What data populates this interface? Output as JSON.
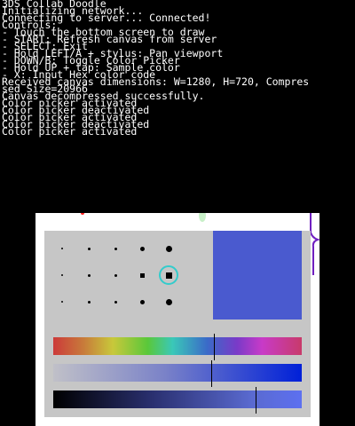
{
  "console": {
    "lines": [
      "3DS Collab Doodle",
      "Initializing network...",
      "Connecting to server... Connected!",
      "Controls:",
      "- Touch the bottom screen to draw",
      "- START: Refresh canvas from server",
      "- SELECT: Exit",
      "- Hold LEFT/A + stylus: Pan viewport",
      "- DOWN/B: Toggle Color Picker",
      "- Hold UP + tap: Sample color",
      "- X: Input Hex color code",
      "Received canvas dimensions: W=1280, H=720, Compres",
      "sed Size=20966",
      "Canvas decompressed successfully.",
      "Color picker activated",
      "Color picker deactivated",
      "Color picker activated",
      "Color picker deactivated",
      "Color picker activated"
    ]
  },
  "colors": {
    "current": "#4a5acf",
    "ring": "#33cccc",
    "panel": "#c6c6c6"
  },
  "picker": {
    "selected_brush_row": 2,
    "selected_brush_col": 5,
    "hue_level": 0.645,
    "saturation_level": 0.636,
    "value_level": 0.814
  },
  "icons": {
    "brush_ring": "selection-ring-icon"
  }
}
